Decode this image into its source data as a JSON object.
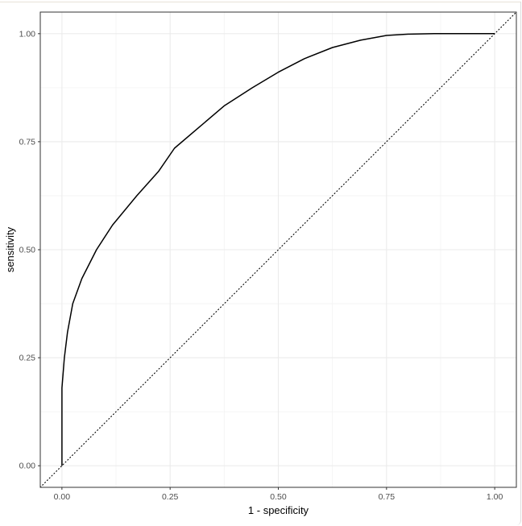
{
  "chart_data": {
    "type": "line",
    "title": "",
    "xlabel": "1 - specificity",
    "ylabel": "sensitivity",
    "xlim": [
      -0.05,
      1.05
    ],
    "ylim": [
      -0.05,
      1.05
    ],
    "xticks": [
      "0.00",
      "0.25",
      "0.50",
      "0.75",
      "1.00"
    ],
    "yticks": [
      "0.00",
      "0.25",
      "0.50",
      "0.75",
      "1.00"
    ],
    "grid": true,
    "theme": "bw",
    "series": [
      {
        "style": "solid",
        "color": "#000000",
        "x": [
          0,
          0,
          0,
          0.0056,
          0.013,
          0.025,
          0.046,
          0.08,
          0.117,
          0.173,
          0.223,
          0.26,
          0.32,
          0.375,
          0.44,
          0.5,
          0.56,
          0.625,
          0.69,
          0.75,
          0.8,
          0.86,
          1.0
        ],
        "y": [
          0,
          0.125,
          0.18,
          0.25,
          0.309,
          0.375,
          0.433,
          0.5,
          0.557,
          0.625,
          0.681,
          0.735,
          0.786,
          0.833,
          0.875,
          0.911,
          0.942,
          0.968,
          0.985,
          0.996,
          0.999,
          1.0,
          1.0
        ]
      }
    ],
    "reference_line": {
      "style": "dotted",
      "slope": 1,
      "intercept": 0
    }
  }
}
